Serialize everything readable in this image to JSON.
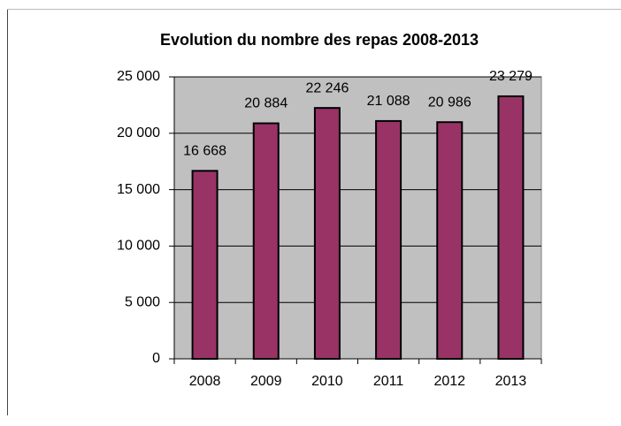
{
  "chart_data": {
    "type": "bar",
    "title": "Evolution du nombre des repas 2008-2013",
    "categories": [
      "2008",
      "2009",
      "2010",
      "2011",
      "2012",
      "2013"
    ],
    "values": [
      16668,
      20884,
      22246,
      21088,
      20986,
      23279
    ],
    "value_labels": [
      "16 668",
      "20 884",
      "22 246",
      "21 088",
      "20 986",
      "23 279"
    ],
    "color": "#993366",
    "plot_background": "#c0c0c0",
    "grid": true,
    "ylim": [
      0,
      25000
    ],
    "yticks": [
      {
        "value": 0,
        "label": "0"
      },
      {
        "value": 5000,
        "label": "5 000"
      },
      {
        "value": 10000,
        "label": "10 000"
      },
      {
        "value": 15000,
        "label": "15 000"
      },
      {
        "value": 20000,
        "label": "20 000"
      },
      {
        "value": 25000,
        "label": "25 000"
      }
    ]
  }
}
